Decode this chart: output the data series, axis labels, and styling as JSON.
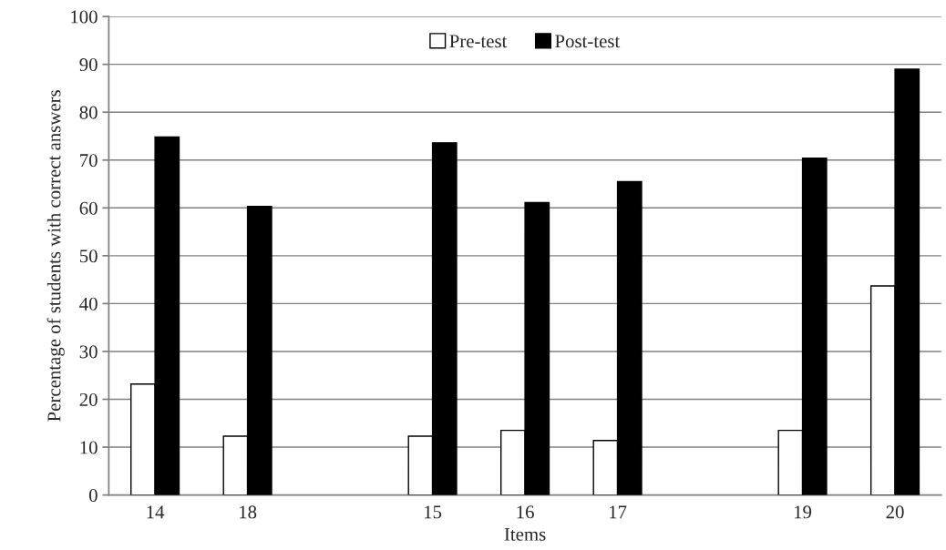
{
  "chart_data": {
    "type": "bar",
    "xlabel": "Items",
    "ylabel": "Percentage of students with correct answers",
    "categories": [
      "14",
      "18",
      null,
      "15",
      "16",
      "17",
      null,
      "19",
      "20"
    ],
    "series": [
      {
        "name": "Pre-test",
        "color": "#ffffff",
        "values": [
          23.2,
          12.3,
          null,
          12.3,
          13.5,
          11.4,
          null,
          13.5,
          43.7
        ]
      },
      {
        "name": "Post-test",
        "color": "#000000",
        "values": [
          74.8,
          60.3,
          null,
          73.6,
          61.1,
          65.5,
          null,
          70.4,
          89.0
        ]
      }
    ],
    "ylim": [
      0,
      100
    ],
    "yticks": [
      0,
      10,
      20,
      30,
      40,
      50,
      60,
      70,
      80,
      90,
      100
    ],
    "grid": "y",
    "legend": "top"
  }
}
